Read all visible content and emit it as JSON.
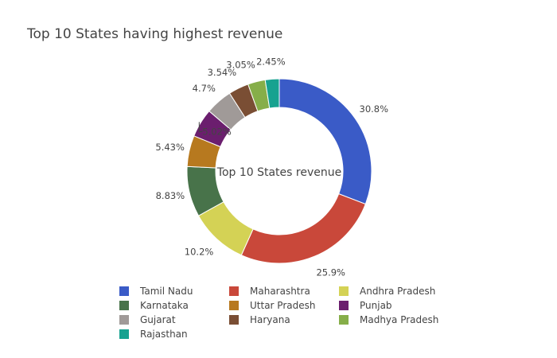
{
  "chart_data": {
    "type": "pie",
    "title": "Top 10 States having highest revenue",
    "center_label": "Top 10 States revenue",
    "hole": true,
    "legend_position": "bottom",
    "categories": [
      "Tamil Nadu",
      "Maharashtra",
      "Andhra Pradesh",
      "Karnataka",
      "Uttar Pradesh",
      "Punjab",
      "Gujarat",
      "Haryana",
      "Madhya Pradesh",
      "Rajasthan"
    ],
    "values": [
      30.8,
      25.9,
      10.2,
      8.83,
      5.43,
      5.02,
      4.7,
      3.54,
      3.05,
      2.45
    ],
    "value_labels": [
      "30.8%",
      "25.9%",
      "10.2%",
      "8.83%",
      "5.43%",
      "5.02%",
      "4.7%",
      "3.54%",
      "3.05%",
      "2.45%"
    ],
    "colors": [
      "#3A5BC7",
      "#C9483A",
      "#D4D255",
      "#48734A",
      "#B7791F",
      "#6B1E6E",
      "#A09A98",
      "#7A4E34",
      "#86AE49",
      "#17A290"
    ]
  }
}
